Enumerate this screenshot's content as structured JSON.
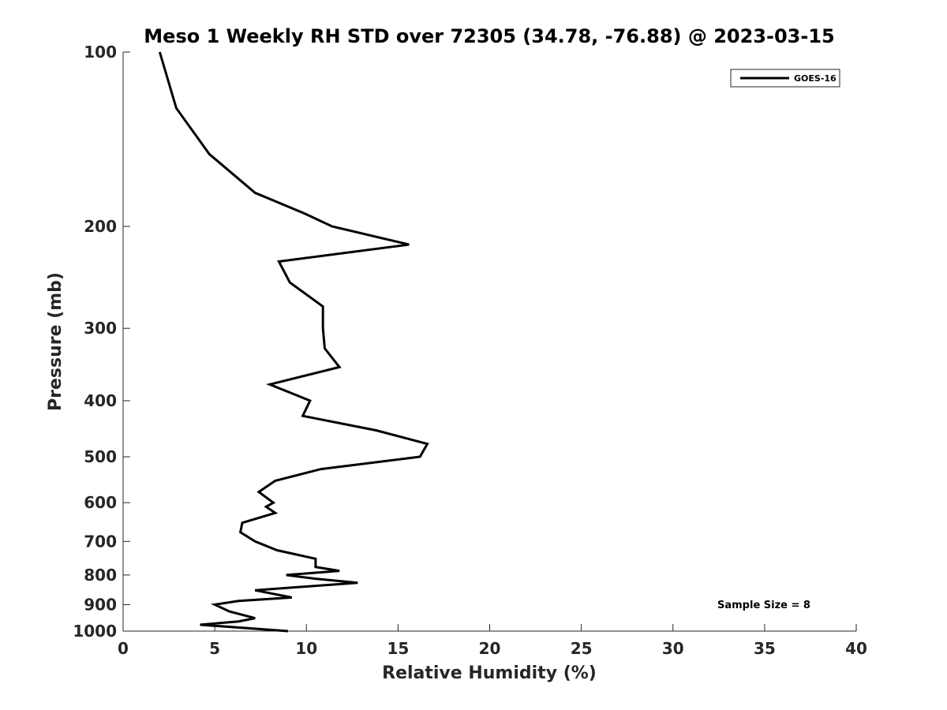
{
  "chart_data": {
    "type": "line",
    "title": "Meso 1 Weekly RH STD over 72305 (34.78, -76.88) @ 2023-03-15",
    "xlabel": "Relative Humidity (%)",
    "ylabel": "Pressure (mb)",
    "xlim": [
      0,
      40
    ],
    "ylim": [
      100,
      1000
    ],
    "y_scale": "log",
    "y_reversed": true,
    "x_ticks": [
      0,
      5,
      10,
      15,
      20,
      25,
      30,
      35,
      40
    ],
    "x_tick_labels": [
      "0",
      "5",
      "10",
      "15",
      "20",
      "25",
      "30",
      "35",
      "40"
    ],
    "y_ticks": [
      100,
      200,
      300,
      400,
      500,
      600,
      700,
      800,
      900,
      1000
    ],
    "y_tick_labels": [
      "100",
      "200",
      "300",
      "400",
      "500",
      "600",
      "700",
      "800",
      "900",
      "1000"
    ],
    "grid": false,
    "legend_position": "top-right",
    "annotation": "Sample Size = 8",
    "series": [
      {
        "name": "GOES-16",
        "color": "#000000",
        "points": [
          [
            2.0,
            100
          ],
          [
            2.9,
            125
          ],
          [
            4.7,
            150
          ],
          [
            7.2,
            175
          ],
          [
            9.9,
            190
          ],
          [
            11.4,
            200
          ],
          [
            15.6,
            215
          ],
          [
            8.5,
            230
          ],
          [
            9.1,
            250
          ],
          [
            10.9,
            275
          ],
          [
            10.9,
            300
          ],
          [
            11.0,
            325
          ],
          [
            11.8,
            350
          ],
          [
            8.0,
            375
          ],
          [
            10.2,
            400
          ],
          [
            9.8,
            425
          ],
          [
            13.8,
            450
          ],
          [
            16.6,
            475
          ],
          [
            16.2,
            500
          ],
          [
            10.8,
            525
          ],
          [
            8.3,
            550
          ],
          [
            7.4,
            575
          ],
          [
            8.2,
            600
          ],
          [
            7.8,
            610
          ],
          [
            8.3,
            625
          ],
          [
            6.5,
            650
          ],
          [
            6.4,
            675
          ],
          [
            7.2,
            700
          ],
          [
            8.4,
            725
          ],
          [
            10.5,
            750
          ],
          [
            10.5,
            775
          ],
          [
            11.8,
            787
          ],
          [
            8.9,
            800
          ],
          [
            10.5,
            812
          ],
          [
            12.8,
            825
          ],
          [
            7.2,
            850
          ],
          [
            9.2,
            875
          ],
          [
            6.3,
            887
          ],
          [
            5.0,
            900
          ],
          [
            5.8,
            925
          ],
          [
            7.2,
            950
          ],
          [
            6.3,
            962
          ],
          [
            4.2,
            975
          ],
          [
            9.0,
            1000
          ]
        ]
      }
    ]
  }
}
